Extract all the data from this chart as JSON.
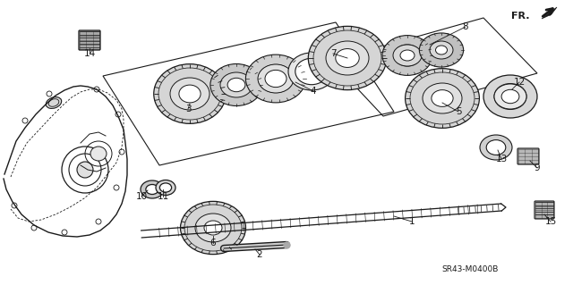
{
  "background_color": "#ffffff",
  "line_color": "#1a1a1a",
  "part_number": "SR43-M0400B",
  "fr_label": "FR.",
  "gear_fill": "#d8d8d8",
  "gear_dark": "#888888",
  "gear_light": "#f0f0f0",
  "shaft_color": "#444444"
}
